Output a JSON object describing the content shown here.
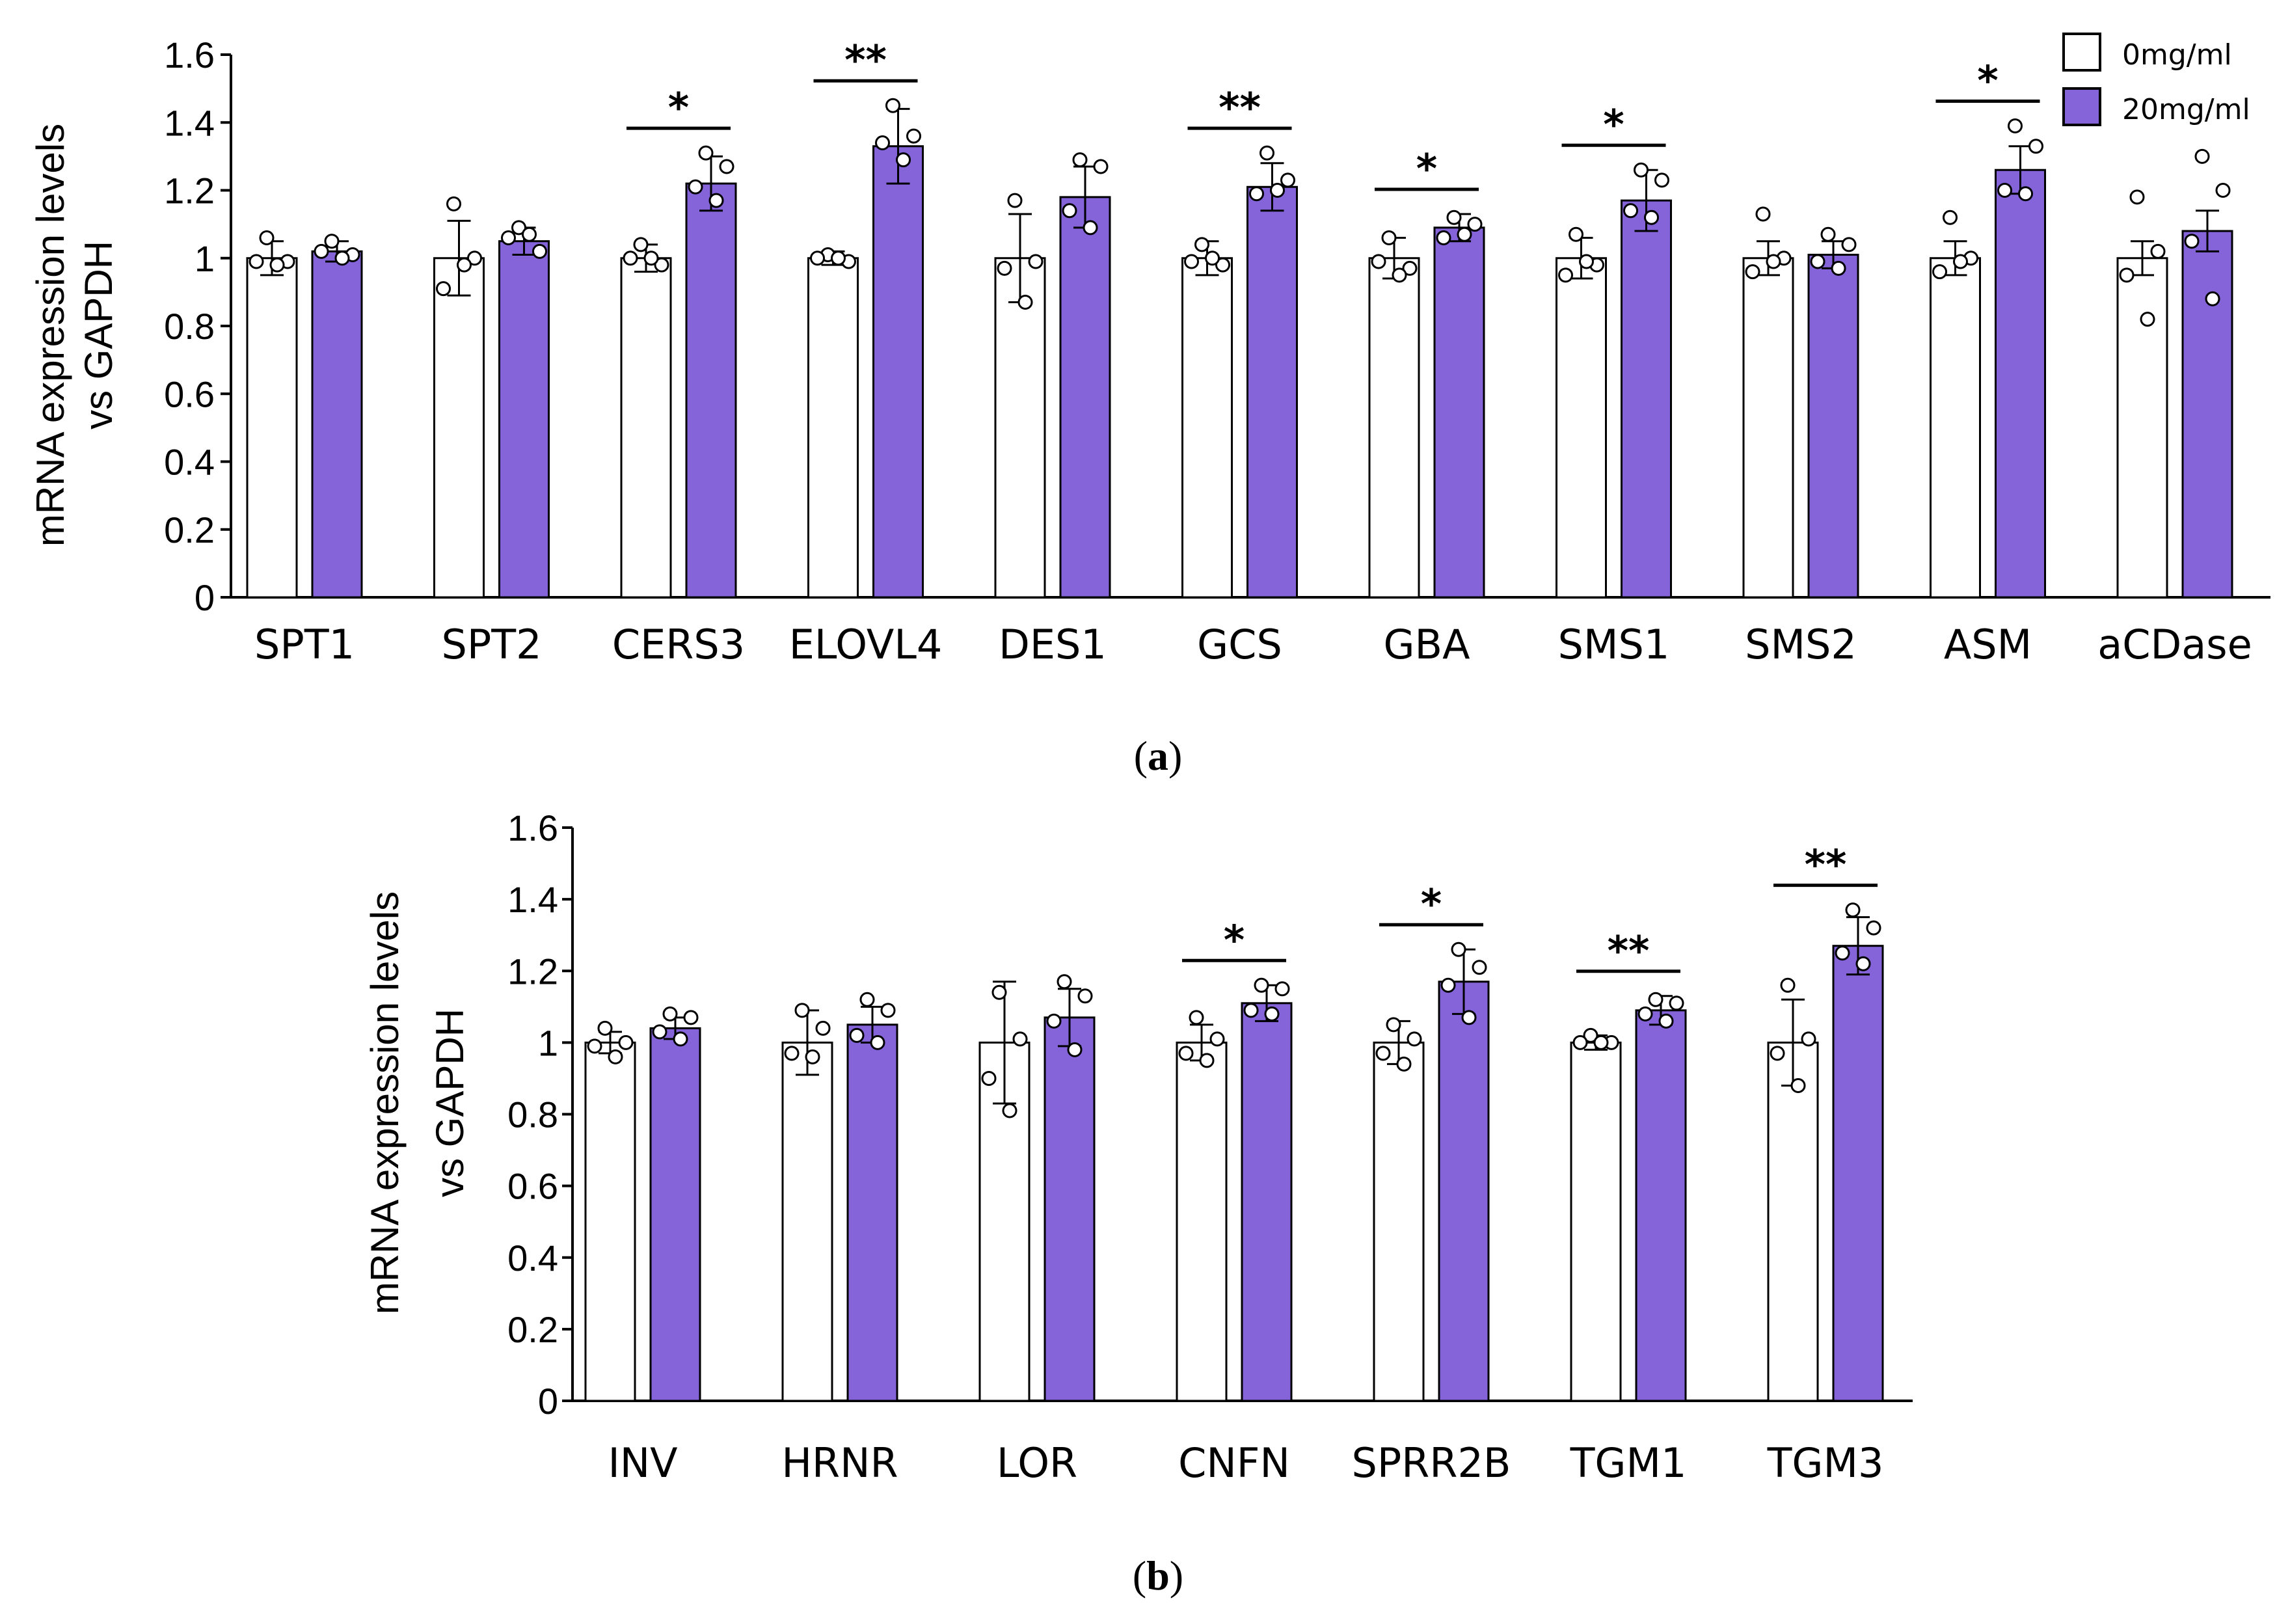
{
  "colors": {
    "control": "#ffffff",
    "treated": "#8464d8",
    "axis": "#000000"
  },
  "chart_data": [
    {
      "type": "bar",
      "panel_label": "a",
      "ylabel_lines": [
        "mRNA expression levels",
        "vs GAPDH"
      ],
      "ylim": [
        0,
        1.6
      ],
      "yticks": [
        "0",
        "0.2",
        "0.4",
        "0.6",
        "0.8",
        "1",
        "1.2",
        "1.4",
        "1.6"
      ],
      "categories": [
        "SPT1",
        "SPT2",
        "CERS3",
        "ELOVL4",
        "DES1",
        "GCS",
        "GBA",
        "SMS1",
        "SMS2",
        "ASM",
        "aCDase"
      ],
      "legend": [
        "0mg/ml",
        "20mg/ml"
      ],
      "series": [
        {
          "name": "0mg/ml",
          "values": [
            1.0,
            1.0,
            1.0,
            1.0,
            1.0,
            1.0,
            1.0,
            1.0,
            1.0,
            1.0,
            1.0
          ],
          "errors": [
            0.05,
            0.11,
            0.04,
            0.02,
            0.13,
            0.05,
            0.06,
            0.06,
            0.05,
            0.05,
            0.05
          ],
          "points": [
            [
              1.06,
              0.99,
              0.99,
              0.98
            ],
            [
              1.16,
              1.0,
              0.91,
              0.98
            ],
            [
              1.04,
              0.98,
              1.0,
              1.0
            ],
            [
              1.01,
              0.99,
              1.0,
              1.0
            ],
            [
              1.17,
              0.99,
              0.97,
              0.87
            ],
            [
              1.04,
              0.98,
              0.99,
              1.0
            ],
            [
              1.06,
              0.97,
              0.99,
              0.95
            ],
            [
              1.07,
              0.98,
              0.95,
              0.99
            ],
            [
              1.13,
              1.0,
              0.96,
              0.99
            ],
            [
              1.12,
              1.0,
              0.96,
              0.99
            ],
            [
              1.18,
              1.02,
              0.95,
              0.82
            ]
          ]
        },
        {
          "name": "20mg/ml",
          "values": [
            1.02,
            1.05,
            1.22,
            1.33,
            1.18,
            1.21,
            1.09,
            1.17,
            1.01,
            1.26,
            1.08
          ],
          "errors": [
            0.03,
            0.04,
            0.08,
            0.11,
            0.09,
            0.07,
            0.04,
            0.09,
            0.04,
            0.07,
            0.06
          ],
          "points": [
            [
              1.05,
              1.01,
              1.02,
              1.0
            ],
            [
              1.09,
              1.02,
              1.06,
              1.07
            ],
            [
              1.31,
              1.27,
              1.21,
              1.17
            ],
            [
              1.45,
              1.36,
              1.34,
              1.29
            ],
            [
              1.29,
              1.27,
              1.14,
              1.09
            ],
            [
              1.31,
              1.23,
              1.19,
              1.2
            ],
            [
              1.12,
              1.1,
              1.06,
              1.07
            ],
            [
              1.26,
              1.23,
              1.14,
              1.12
            ],
            [
              1.07,
              1.04,
              0.99,
              0.97
            ],
            [
              1.39,
              1.33,
              1.2,
              1.19
            ],
            [
              1.3,
              1.2,
              1.05,
              0.88
            ]
          ]
        }
      ],
      "significance": [
        {
          "category": "CERS3",
          "label": "*"
        },
        {
          "category": "ELOVL4",
          "label": "**"
        },
        {
          "category": "GCS",
          "label": "**"
        },
        {
          "category": "GBA",
          "label": "*"
        },
        {
          "category": "SMS1",
          "label": "*"
        },
        {
          "category": "ASM",
          "label": "*"
        }
      ]
    },
    {
      "type": "bar",
      "panel_label": "b",
      "ylabel_lines": [
        "mRNA expression levels",
        "vs GAPDH"
      ],
      "ylim": [
        0,
        1.6
      ],
      "yticks": [
        "0",
        "0.2",
        "0.4",
        "0.6",
        "0.8",
        "1",
        "1.2",
        "1.4",
        "1.6"
      ],
      "categories": [
        "INV",
        "HRNR",
        "LOR",
        "CNFN",
        "SPRR2B",
        "TGM1",
        "TGM3"
      ],
      "series": [
        {
          "name": "0mg/ml",
          "values": [
            1.0,
            1.0,
            1.0,
            1.0,
            1.0,
            1.0,
            1.0
          ],
          "errors": [
            0.03,
            0.09,
            0.17,
            0.05,
            0.06,
            0.02,
            0.12
          ],
          "points": [
            [
              1.04,
              1.0,
              0.99,
              0.96
            ],
            [
              1.09,
              1.04,
              0.97,
              0.96
            ],
            [
              1.14,
              1.01,
              0.9,
              0.81
            ],
            [
              1.07,
              1.01,
              0.97,
              0.95
            ],
            [
              1.05,
              1.01,
              0.97,
              0.94
            ],
            [
              1.02,
              1.0,
              1.0,
              1.0
            ],
            [
              1.16,
              1.01,
              0.97,
              0.88
            ]
          ]
        },
        {
          "name": "20mg/ml",
          "values": [
            1.04,
            1.05,
            1.07,
            1.11,
            1.17,
            1.09,
            1.27
          ],
          "errors": [
            0.03,
            0.05,
            0.08,
            0.05,
            0.09,
            0.04,
            0.08
          ],
          "points": [
            [
              1.08,
              1.07,
              1.03,
              1.01
            ],
            [
              1.12,
              1.09,
              1.02,
              1.0
            ],
            [
              1.17,
              1.13,
              1.06,
              0.98
            ],
            [
              1.16,
              1.15,
              1.09,
              1.08
            ],
            [
              1.26,
              1.21,
              1.16,
              1.07
            ],
            [
              1.12,
              1.11,
              1.08,
              1.06
            ],
            [
              1.37,
              1.32,
              1.25,
              1.22
            ]
          ]
        }
      ],
      "significance": [
        {
          "category": "CNFN",
          "label": "*"
        },
        {
          "category": "SPRR2B",
          "label": "*"
        },
        {
          "category": "TGM1",
          "label": "**"
        },
        {
          "category": "TGM3",
          "label": "**"
        }
      ]
    }
  ]
}
